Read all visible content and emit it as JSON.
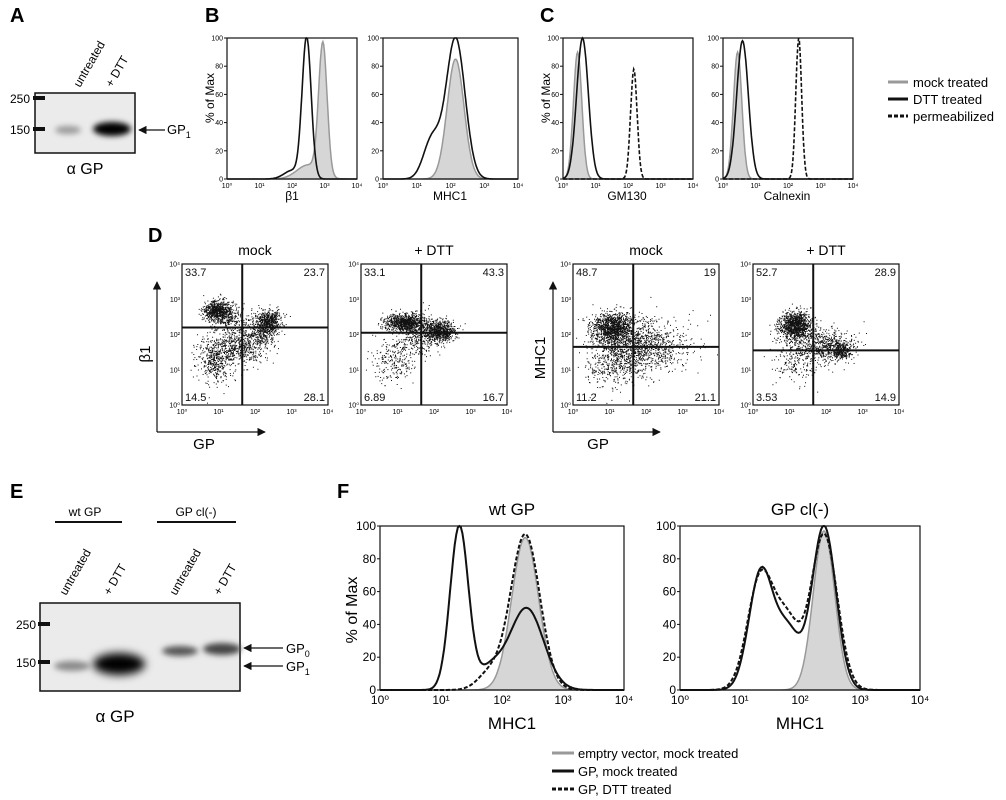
{
  "panels": {
    "A": "A",
    "B": "B",
    "C": "C",
    "D": "D",
    "E": "E",
    "F": "F"
  },
  "panel_a": {
    "lanes": [
      "untreated",
      "+ DTT"
    ],
    "markers": [
      "250",
      "150"
    ],
    "band_label": "GP",
    "band_sub": "1",
    "antibody": "α GP"
  },
  "histogram_common": {
    "y_ticks": [
      "0",
      "20",
      "40",
      "60",
      "80",
      "100"
    ],
    "x_ticks": [
      "10⁰",
      "10¹",
      "10²",
      "10³",
      "10⁴"
    ],
    "y_label": "% of Max"
  },
  "panel_b": {
    "x_labels": [
      "β1",
      "MHC1"
    ]
  },
  "panel_c": {
    "x_labels": [
      "GM130",
      "Calnexin"
    ],
    "legend": [
      "mock treated",
      "DTT treated",
      "permeabilized"
    ]
  },
  "panel_d": {
    "plots": [
      {
        "title": "mock",
        "ylabel": "β1",
        "xlabel": "GP",
        "q": [
          "33.7",
          "23.7",
          "14.5",
          "28.1"
        ]
      },
      {
        "title": "+ DTT",
        "ylabel": "",
        "xlabel": "",
        "q": [
          "33.1",
          "43.3",
          "6.89",
          "16.7"
        ]
      },
      {
        "title": "mock",
        "ylabel": "MHC1",
        "xlabel": "GP",
        "q": [
          "48.7",
          "19",
          "11.2",
          "21.1"
        ]
      },
      {
        "title": "+ DTT",
        "ylabel": "",
        "xlabel": "",
        "q": [
          "52.7",
          "28.9",
          "3.53",
          "14.9"
        ]
      }
    ],
    "ticks": [
      "10⁰",
      "10¹",
      "10²",
      "10³",
      "10⁴"
    ]
  },
  "panel_e": {
    "groups": [
      "wt GP",
      "GP cl(-)"
    ],
    "lanes": [
      "untreated",
      "+ DTT",
      "untreated",
      "+ DTT"
    ],
    "markers": [
      "250",
      "150"
    ],
    "bands": [
      {
        "label": "GP",
        "sub": "0"
      },
      {
        "label": "GP",
        "sub": "1"
      }
    ],
    "antibody": "α GP"
  },
  "panel_f": {
    "titles": [
      "wt GP",
      "GP cl(-)"
    ],
    "y_label": "% of Max",
    "x_label": "MHC1",
    "y_ticks": [
      "0",
      "20",
      "40",
      "60",
      "80",
      "100"
    ],
    "x_ticks": [
      "10⁰",
      "10¹",
      "10²",
      "10³",
      "10⁴"
    ],
    "legend": [
      "emptry vector, mock treated",
      "GP, mock treated",
      "GP, DTT treated"
    ]
  },
  "colors": {
    "grey_fill": "#d6d6d6",
    "grey_line": "#999999",
    "ink": "#111111",
    "blot_bg": "#e9e9e9"
  }
}
